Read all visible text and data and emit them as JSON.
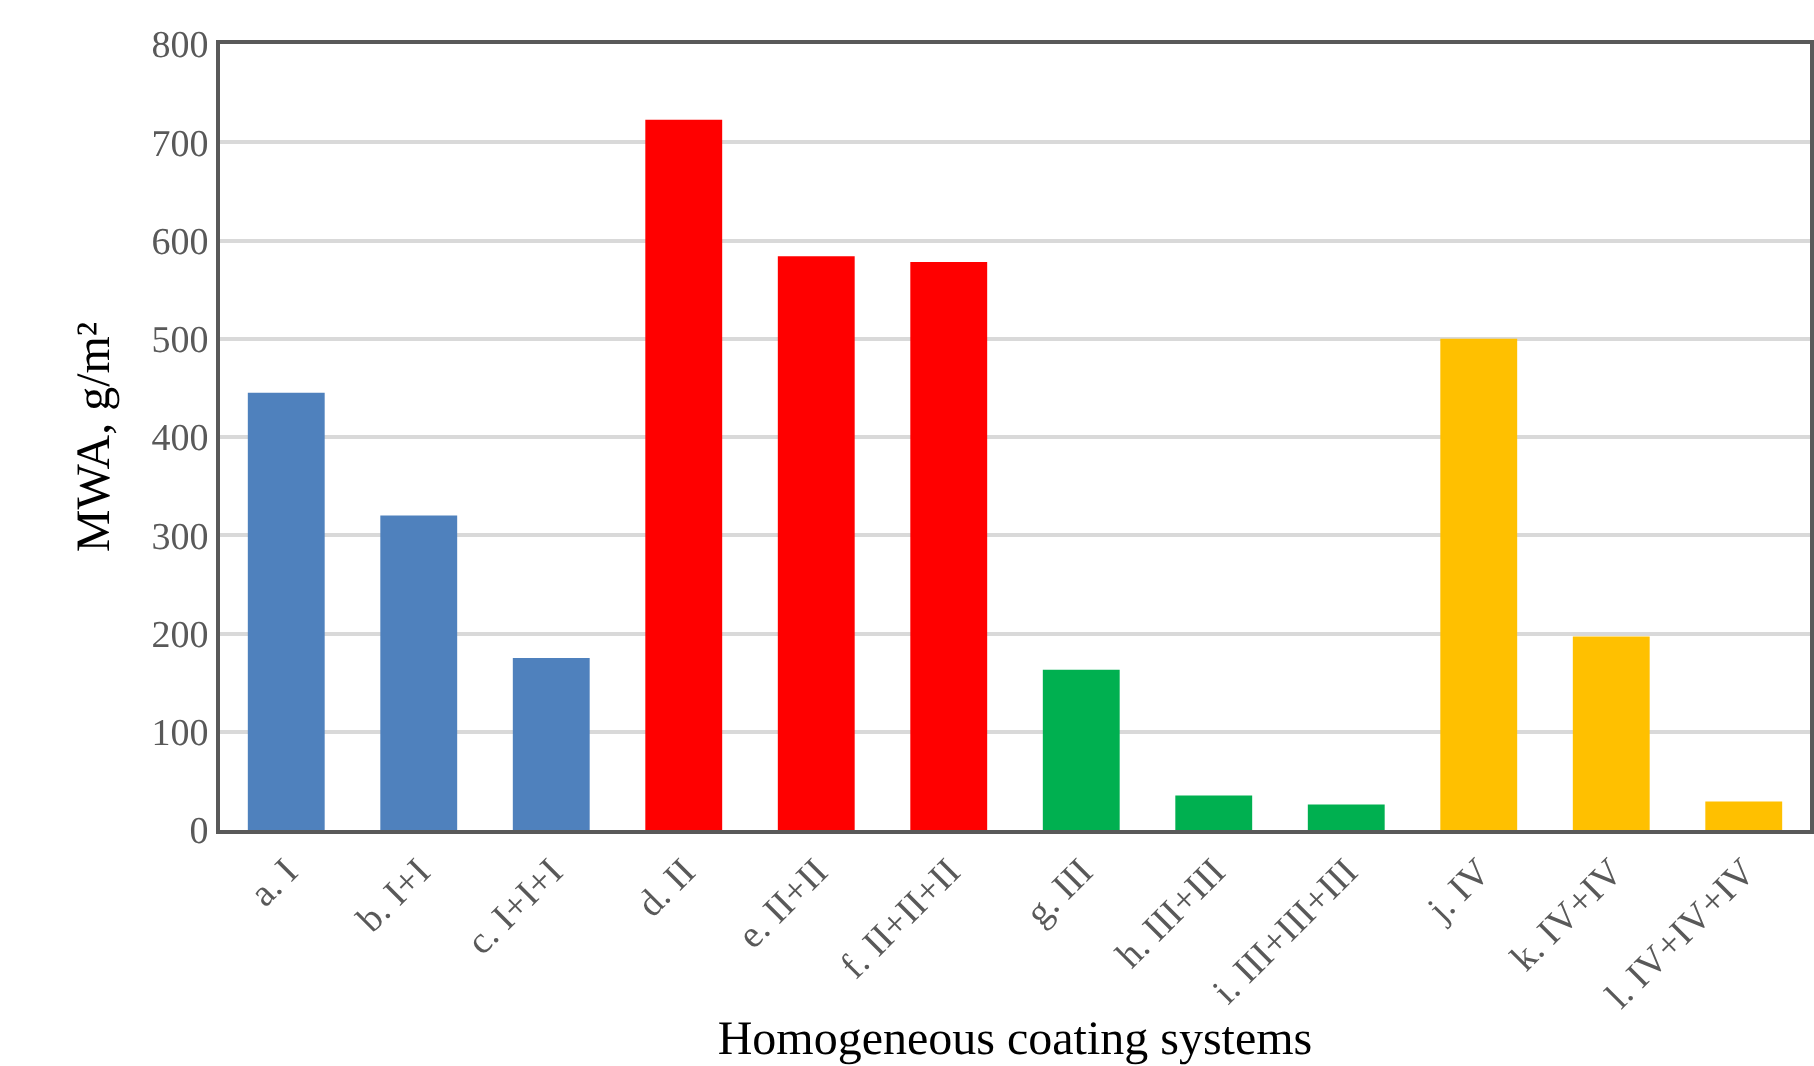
{
  "chart_data": {
    "type": "bar",
    "xlabel": "Homogeneous coating systems",
    "ylabel": "MWA, g/m²",
    "categories": [
      "a. I",
      "b. I+I",
      "c. I+I+I",
      "d. II",
      "e. II+II",
      "f. II+II+II",
      "g. III",
      "h. III+III",
      "i. III+III+III",
      "j. IV",
      "k. IV+IV",
      "l. IV+IV+IV"
    ],
    "values": [
      445,
      320,
      175,
      723,
      584,
      578,
      163,
      35,
      26,
      500,
      197,
      29
    ],
    "colors": [
      "#4f81bd",
      "#4f81bd",
      "#4f81bd",
      "#ff0000",
      "#ff0000",
      "#ff0000",
      "#00b050",
      "#00b050",
      "#00b050",
      "#ffc000",
      "#ffc000",
      "#ffc000"
    ],
    "ylim": [
      0,
      800
    ],
    "yticks": [
      0,
      100,
      200,
      300,
      400,
      500,
      600,
      700,
      800
    ],
    "grid": "y"
  }
}
